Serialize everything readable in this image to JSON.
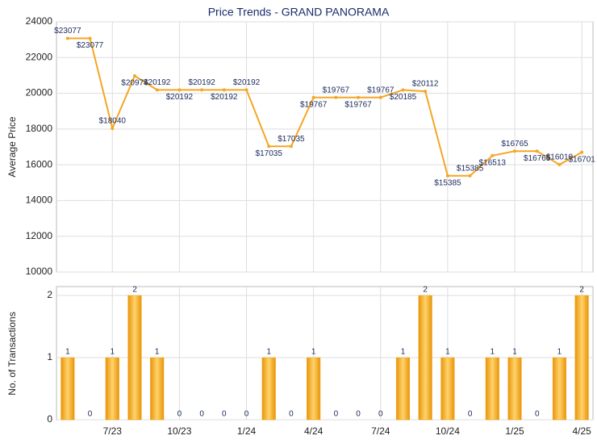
{
  "chart_data": [
    {
      "type": "line",
      "title": "Price Trends - GRAND PANORAMA",
      "ylabel": "Average Price",
      "values": [
        23077,
        23077,
        18040,
        20974,
        20192,
        20192,
        20192,
        20192,
        20192,
        17035,
        17035,
        19767,
        19767,
        19767,
        19767,
        20185,
        20112,
        15385,
        15385,
        16513,
        16765,
        16765,
        16010,
        16701
      ],
      "value_labels": [
        "$23077",
        "$23077",
        "$18040",
        "$20974",
        "$20192",
        "$20192",
        "$20192",
        "$20192",
        "$20192",
        "$17035",
        "$17035",
        "$19767",
        "$19767",
        "$19767",
        "$19767",
        "$20185",
        "$20112",
        "$15385",
        "$15385",
        "$16513",
        "$16765",
        "$16765",
        "$16010",
        "$16701"
      ],
      "color": "#f5a623",
      "ylim": [
        10000,
        24000
      ],
      "yticks": [
        10000,
        12000,
        14000,
        16000,
        18000,
        20000,
        22000,
        24000
      ],
      "grid": true
    },
    {
      "type": "bar",
      "ylabel": "No. of Transactions",
      "categories": [
        null,
        null,
        "7/23",
        null,
        null,
        "10/23",
        null,
        null,
        "1/24",
        null,
        null,
        "4/24",
        null,
        null,
        "7/24",
        null,
        null,
        "10/24",
        null,
        null,
        "1/25",
        null,
        null,
        "4/25"
      ],
      "values": [
        1,
        0,
        1,
        2,
        1,
        0,
        0,
        0,
        0,
        1,
        0,
        1,
        0,
        0,
        0,
        1,
        2,
        1,
        0,
        1,
        1,
        0,
        1,
        2
      ],
      "color": "#f2a516",
      "ylim": [
        0,
        2
      ],
      "yticks": [
        0,
        1,
        2
      ],
      "grid": true
    }
  ]
}
